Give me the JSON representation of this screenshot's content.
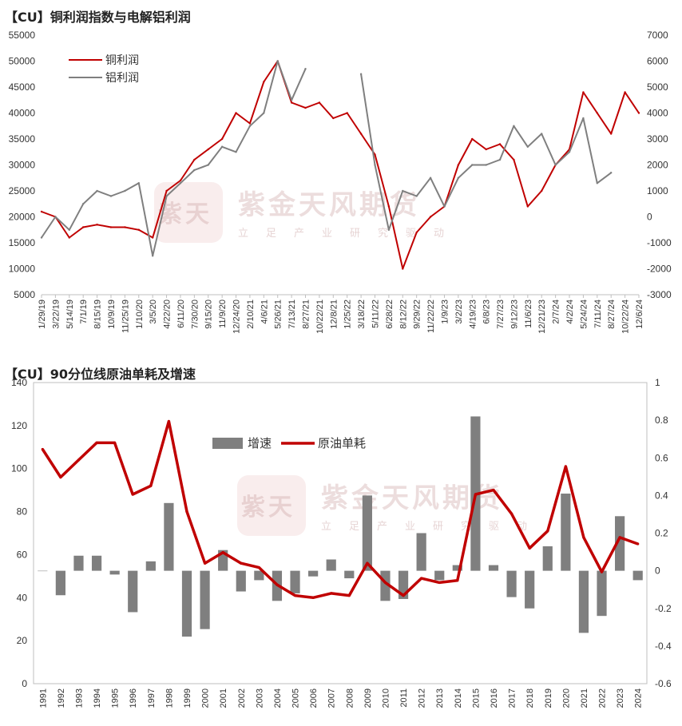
{
  "chart_data": [
    {
      "type": "line",
      "title": "【CU】铜利润指数与电解铝利润",
      "legend_position": "top-left",
      "grid": false,
      "y_left_lim": [
        5000,
        55000
      ],
      "y_left_ticks": [
        5000,
        10000,
        15000,
        20000,
        25000,
        30000,
        35000,
        40000,
        45000,
        50000,
        55000
      ],
      "y_right_lim": [
        -3000,
        7000
      ],
      "y_right_ticks": [
        -3000,
        -2000,
        -1000,
        0,
        1000,
        2000,
        3000,
        4000,
        5000,
        6000,
        7000
      ],
      "x_tick_labels": [
        "1/29/19",
        "3/22/19",
        "5/14/19",
        "7/1/19",
        "8/15/19",
        "10/9/19",
        "11/25/19",
        "1/10/20",
        "3/5/20",
        "4/22/20",
        "6/11/20",
        "7/30/20",
        "9/15/20",
        "11/9/20",
        "12/24/20",
        "2/10/21",
        "4/6/21",
        "5/26/21",
        "7/13/21",
        "8/27/21",
        "10/22/21",
        "12/8/21",
        "1/25/22",
        "3/18/22",
        "5/11/22",
        "6/28/22",
        "8/12/22",
        "9/29/22",
        "11/22/22",
        "1/9/23",
        "3/2/23",
        "4/19/23",
        "6/8/23",
        "7/27/23",
        "9/12/23",
        "11/6/23",
        "12/21/23",
        "2/7/24",
        "4/2/24",
        "5/24/24",
        "7/11/24",
        "8/27/24",
        "10/22/24",
        "12/6/24"
      ],
      "series": [
        {
          "name": "铜利润",
          "color": "#c00000",
          "axis": "left",
          "x": [
            "1/29/19",
            "3/22/19",
            "5/14/19",
            "7/1/19",
            "8/15/19",
            "10/9/19",
            "11/25/19",
            "1/10/20",
            "3/5/20",
            "4/22/20",
            "6/11/20",
            "7/30/20",
            "9/15/20",
            "11/9/20",
            "12/24/20",
            "2/10/21",
            "4/6/21",
            "5/26/21",
            "7/13/21",
            "8/27/21",
            "10/22/21",
            "12/8/21",
            "1/25/22",
            "3/18/22",
            "5/11/22",
            "6/28/22",
            "8/12/22",
            "9/29/22",
            "11/22/22",
            "1/9/23",
            "3/2/23",
            "4/19/23",
            "6/8/23",
            "7/27/23",
            "9/12/23",
            "11/6/23",
            "12/21/23",
            "2/7/24",
            "4/2/24",
            "5/24/24",
            "7/11/24",
            "8/27/24",
            "10/22/24",
            "12/6/24"
          ],
          "values": [
            21000,
            20000,
            16000,
            18000,
            18500,
            18000,
            18000,
            17500,
            16000,
            25000,
            27000,
            31000,
            33000,
            35000,
            40000,
            38000,
            46000,
            50000,
            42000,
            41000,
            42000,
            39000,
            40000,
            36000,
            32000,
            22000,
            10000,
            17000,
            20000,
            22000,
            30000,
            35000,
            33000,
            34000,
            31000,
            22000,
            25000,
            30000,
            33000,
            44000,
            40000,
            36000,
            44000,
            40000
          ]
        },
        {
          "name": "铝利润",
          "color": "#7f7f7f",
          "axis": "right",
          "x": [
            "1/29/19",
            "3/22/19",
            "5/14/19",
            "7/1/19",
            "8/15/19",
            "10/9/19",
            "11/25/19",
            "1/10/20",
            "3/5/20",
            "4/22/20",
            "6/11/20",
            "7/30/20",
            "9/15/20",
            "11/9/20",
            "12/24/20",
            "2/10/21",
            "4/6/21",
            "5/26/21",
            "7/13/21",
            "8/27/21",
            "10/22/21",
            "12/8/21",
            "1/25/22",
            "3/18/22",
            "5/11/22",
            "6/28/22",
            "8/12/22",
            "9/29/22",
            "11/22/22",
            "1/9/23",
            "3/2/23",
            "4/19/23",
            "6/8/23",
            "7/27/23",
            "9/12/23",
            "11/6/23",
            "12/21/23",
            "2/7/24",
            "4/2/24",
            "5/24/24",
            "7/11/24",
            "8/27/24",
            "10/22/24",
            "12/6/24"
          ],
          "values": [
            -800,
            0,
            -500,
            500,
            1000,
            800,
            1000,
            1300,
            -1500,
            800,
            1300,
            1800,
            2000,
            2700,
            2500,
            3500,
            4000,
            6000,
            4500,
            5700,
            null,
            null,
            null,
            5500,
            2000,
            -500,
            1000,
            800,
            1500,
            400,
            1500,
            2000,
            2000,
            2200,
            3500,
            2700,
            3200,
            2000,
            2500,
            3800,
            1300,
            1700,
            null,
            null
          ]
        }
      ]
    },
    {
      "type": "bar",
      "title": "【CU】90分位线原油单耗及增速",
      "legend_position": "top-left",
      "grid": false,
      "categories": [
        "1991",
        "1992",
        "1993",
        "1994",
        "1995",
        "1996",
        "1997",
        "1998",
        "1999",
        "2000",
        "2001",
        "2002",
        "2003",
        "2004",
        "2005",
        "2006",
        "2007",
        "2008",
        "2009",
        "2010",
        "2011",
        "2012",
        "2013",
        "2014",
        "2015",
        "2016",
        "2017",
        "2018",
        "2019",
        "2020",
        "2021",
        "2022",
        "2023",
        "2024"
      ],
      "y_left_lim": [
        0,
        140
      ],
      "y_left_ticks": [
        0,
        20,
        40,
        60,
        80,
        100,
        120,
        140
      ],
      "y_right_lim": [
        -0.6,
        1
      ],
      "y_right_ticks": [
        -0.6,
        -0.4,
        -0.2,
        0,
        0.2,
        0.4,
        0.6,
        0.8,
        1
      ],
      "series": [
        {
          "name": "增速",
          "type": "bar",
          "color": "#7f7f7f",
          "axis": "right",
          "values": [
            0.0,
            -0.13,
            0.08,
            0.08,
            -0.02,
            -0.22,
            0.05,
            0.36,
            -0.35,
            -0.31,
            0.11,
            -0.11,
            -0.05,
            -0.16,
            -0.12,
            -0.03,
            0.06,
            -0.04,
            0.4,
            -0.16,
            -0.15,
            0.2,
            -0.05,
            0.03,
            0.82,
            0.03,
            -0.14,
            -0.2,
            0.13,
            0.41,
            -0.33,
            -0.24,
            0.29,
            -0.05
          ]
        },
        {
          "name": "原油单耗",
          "type": "line",
          "color": "#c00000",
          "axis": "left",
          "values": [
            109,
            96,
            104,
            112,
            112,
            88,
            92,
            122,
            80,
            56,
            61,
            56,
            54,
            46,
            41,
            40,
            42,
            41,
            56,
            47,
            41,
            49,
            47,
            48,
            88,
            90,
            79,
            63,
            71,
            101,
            68,
            52,
            68,
            65
          ]
        }
      ]
    }
  ],
  "watermark": {
    "name": "紫金天风期货",
    "sub": "立足产业研究驱动",
    "seal": "紫天金风"
  }
}
